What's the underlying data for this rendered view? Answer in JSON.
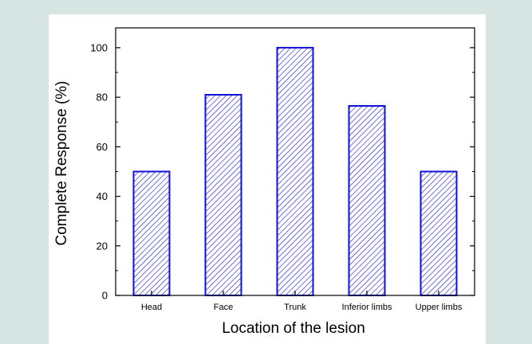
{
  "chart_data": {
    "type": "bar",
    "title": "",
    "xlabel": "Location of the lesion",
    "ylabel": "Complete Response (%)",
    "categories": [
      "Head",
      "Face",
      "Trunk",
      "Inferior limbs",
      "Upper limbs"
    ],
    "values": [
      50,
      81,
      100,
      76.5,
      50
    ],
    "ylim": [
      0,
      108
    ],
    "yticks": [
      0,
      20,
      40,
      60,
      80,
      100
    ],
    "grid": false,
    "bar_color": "#1010d8",
    "fill_pattern": "diagonal-hatch"
  }
}
